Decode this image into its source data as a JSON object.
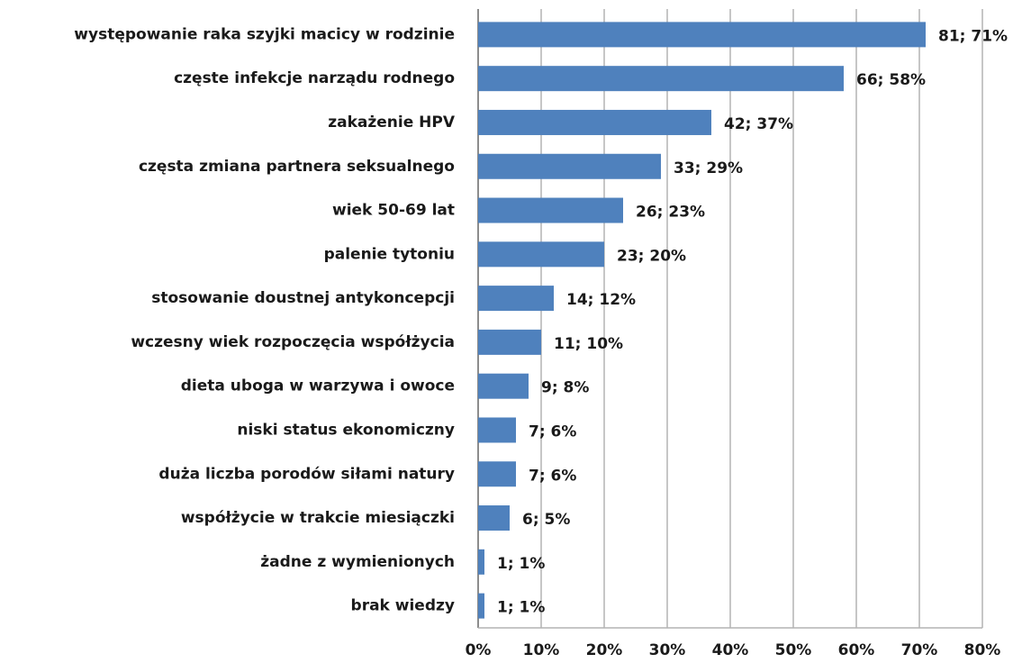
{
  "chart_data": {
    "type": "bar",
    "orientation": "horizontal",
    "categories": [
      "występowanie raka szyjki macicy w rodzinie",
      "częste infekcje narządu rodnego",
      "zakażenie HPV",
      "częsta zmiana partnera seksualnego",
      "wiek 50-69 lat",
      "palenie tytoniu",
      "stosowanie doustnej antykoncepcji",
      "wczesny wiek rozpoczęcia współżycia",
      "dieta uboga w warzywa i owoce",
      "niski status ekonomiczny",
      "duża liczba porodów siłami natury",
      "współżycie w trakcie miesiączki",
      "żadne z wymienionych",
      "brak wiedzy"
    ],
    "values": [
      71,
      58,
      37,
      29,
      23,
      20,
      12,
      10,
      8,
      6,
      6,
      5,
      1,
      1
    ],
    "value_labels": [
      "81; 71%",
      "66; 58%",
      "42; 37%",
      "33; 29%",
      "26; 23%",
      "23; 20%",
      "14; 12%",
      "11; 10%",
      "9; 8%",
      "7; 6%",
      "7; 6%",
      "6; 5%",
      "1; 1%",
      "1; 1%"
    ],
    "color": "#4f81bd",
    "xlim": [
      0,
      80
    ],
    "xticks": [
      {
        "value": 0,
        "label": "0%"
      },
      {
        "value": 10,
        "label": "10%"
      },
      {
        "value": 20,
        "label": "20%"
      },
      {
        "value": 30,
        "label": "30%"
      },
      {
        "value": 40,
        "label": "40%"
      },
      {
        "value": 50,
        "label": "50%"
      },
      {
        "value": 60,
        "label": "60%"
      },
      {
        "value": 70,
        "label": "70%"
      },
      {
        "value": 80,
        "label": "80%"
      }
    ],
    "grid": true
  }
}
